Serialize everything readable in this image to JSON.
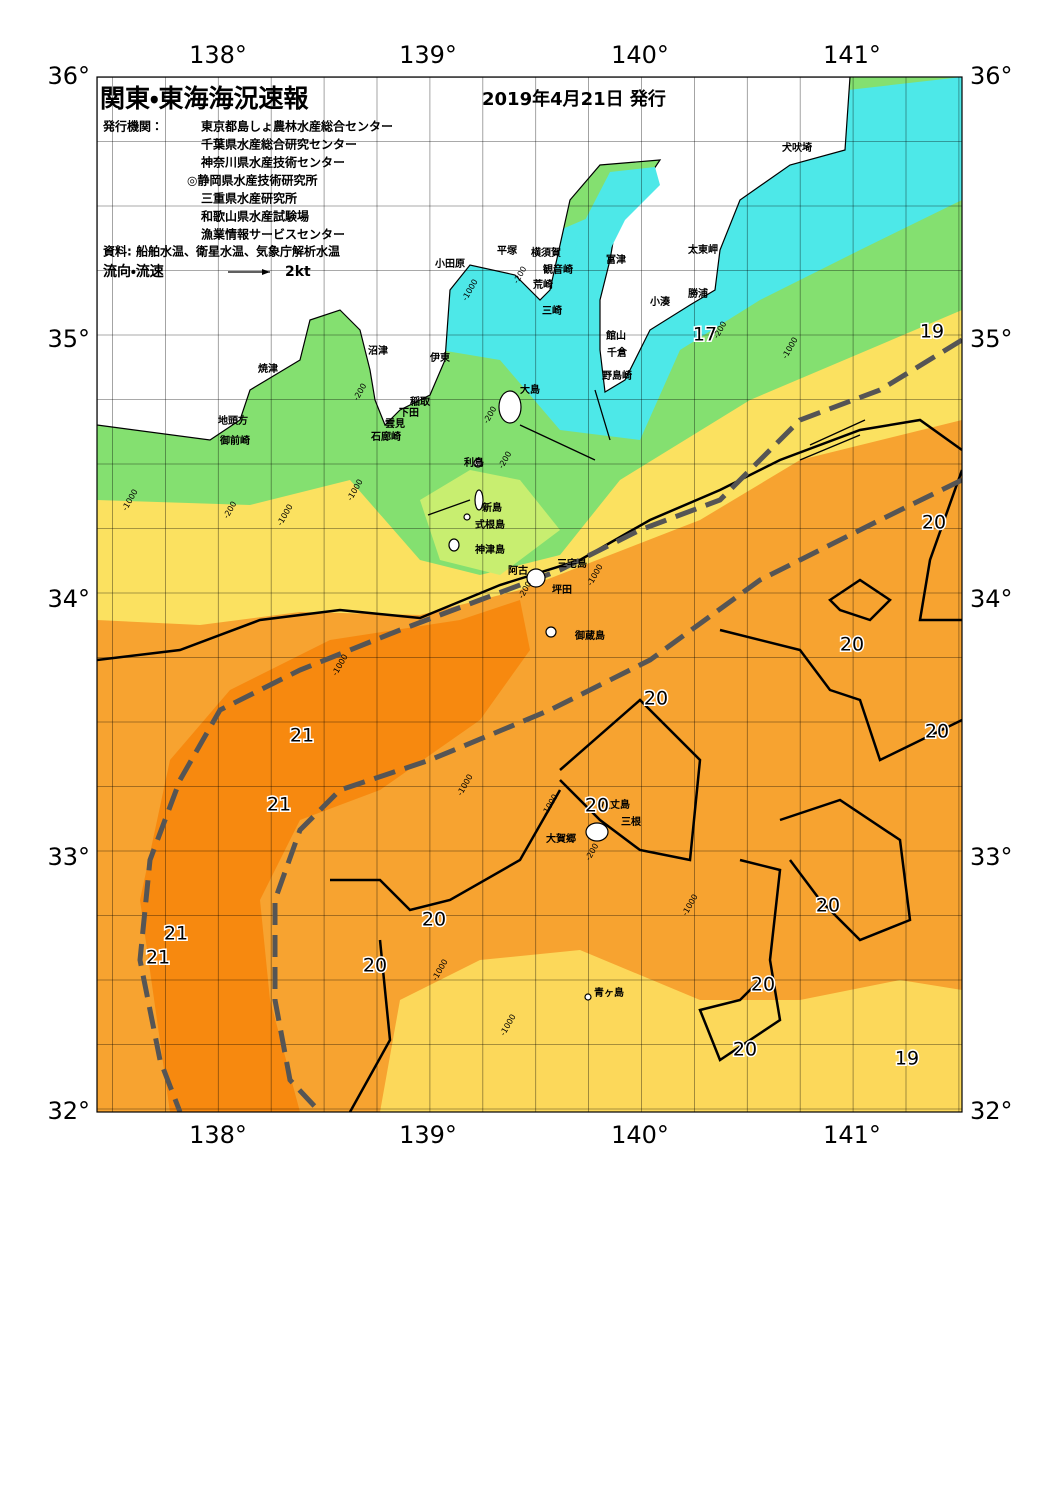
{
  "header": {
    "title": "関東・東海海況速報",
    "date": "2019年4月21日 発行",
    "publisher_label": "発行機関：",
    "publishers": [
      "東京都島しょ農林水産総合センター",
      "千葉県水産総合研究センター",
      "神奈川県水産技術センター",
      "◎静岡県水産技術研究所",
      "三重県水産研究所",
      "和歌山県水産試験場",
      "漁業情報サービスセンター"
    ],
    "sources": "資料: 船舶水温、衛星水温、気象庁解析水温",
    "legend_label": "流向・流速",
    "legend_scale": "2kt"
  },
  "axes": {
    "longitudes": [
      "138°",
      "139°",
      "140°",
      "141°"
    ],
    "latitudes": [
      "36°",
      "35°",
      "34°",
      "33°",
      "32°"
    ]
  },
  "places": [
    "犬吠埼",
    "太東岬",
    "勝浦",
    "小湊",
    "富津",
    "館山",
    "千倉",
    "野島崎",
    "横須賀",
    "観音崎",
    "荒崎",
    "三崎",
    "平塚",
    "小田原",
    "沼津",
    "伊東",
    "焼津",
    "大島",
    "稲取",
    "下田",
    "雲見",
    "石廊崎",
    "地頭方",
    "御前崎",
    "利島",
    "新島",
    "式根島",
    "神津島",
    "三宅島",
    "阿古",
    "坪田",
    "御蔵島",
    "八丈島",
    "三根",
    "大賀郷",
    "青ヶ島"
  ],
  "contour_labels": [
    "17",
    "19",
    "20",
    "20",
    "20",
    "20",
    "21",
    "21",
    "20",
    "20",
    "20",
    "21",
    "21",
    "20",
    "20",
    "20",
    "19"
  ],
  "depth_labels": [
    "-1000",
    "-200",
    "-200",
    "-200",
    "-1000",
    "-200",
    "-1000",
    "-1000",
    "-200",
    "-1000",
    "-200",
    "-1000",
    "-1000",
    "-1000",
    "-200",
    "-1000",
    "-1000",
    "-1000",
    "-200",
    "-1000"
  ]
}
